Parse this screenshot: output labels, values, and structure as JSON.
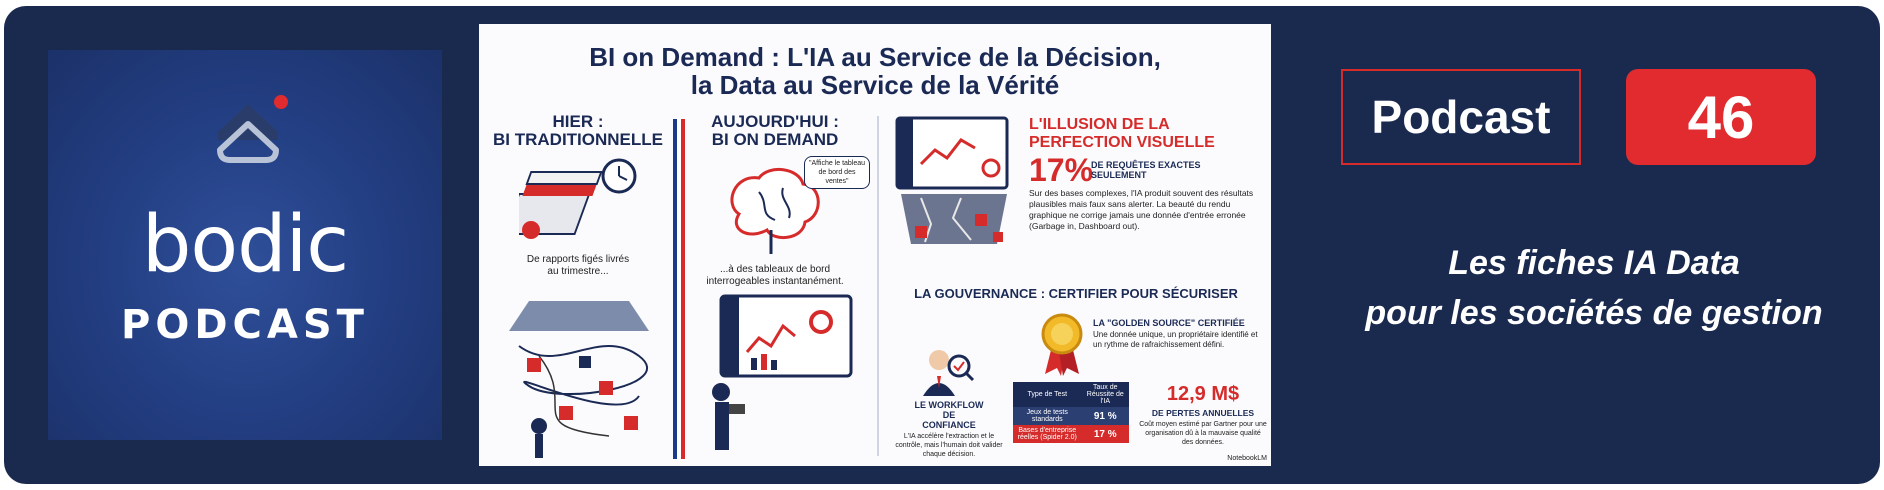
{
  "logo": {
    "word": "bodic",
    "sub": "PODCAST"
  },
  "infographic": {
    "title_line1": "BI on Demand : L'IA au Service de la Décision,",
    "title_line2": "la Data au Service de la Vérité",
    "left_head_1": "HIER :",
    "left_head_2": "BI TRADITIONNELLE",
    "left_caption_1": "De rapports figés livrés",
    "left_caption_2": "au trimestre...",
    "mid_head_1": "AUJOURD'HUI :",
    "mid_head_2": "BI ON DEMAND",
    "mid_bubble": "\"Affiche le tableau de bord des ventes\"",
    "mid_caption_1": "...à des tableaux de bord",
    "mid_caption_2": "interrogeables instantanément.",
    "illusion_1": "L'ILLUSION DE LA",
    "illusion_2": "PERFECTION VISUELLE",
    "stat_pct": "17%",
    "stat_label_1": "DE REQUÊTES EXACTES",
    "stat_label_2": "SEULEMENT",
    "stat_desc": "Sur des bases complexes, l'IA produit souvent des résultats plausibles mais faux sans alerter. La beauté du rendu graphique ne corrige jamais une donnée d'entrée erronée (Garbage in, Dashboard out).",
    "gov_head": "LA GOUVERNANCE : CERTIFIER POUR SÉCURISER",
    "golden_head": "LA \"GOLDEN SOURCE\" CERTIFIÉE",
    "golden_desc": "Une donnée unique, un propriétaire identifié et un rythme de rafraichissement défini.",
    "workflow_head_1": "LE WORKFLOW",
    "workflow_head_2": "DE",
    "workflow_head_3": "CONFIANCE",
    "workflow_desc": "L'IA accélère l'extraction et le contrôle, mais l'humain doit valider chaque décision.",
    "table": {
      "h1": "Type de Test",
      "h2": "Taux de Réussite de l'IA",
      "r1c1": "Jeux de tests standards",
      "r1c2": "91 %",
      "r2c1": "Bases d'entreprise réelles (Spider 2.0)",
      "r2c2": "17 %"
    },
    "loss_value": "12,9 M$",
    "loss_label": "DE PERTES ANNUELLES",
    "loss_desc": "Coût moyen estimé par Gartner pour une organisation dû à la mauvaise qualité des données.",
    "credit": "NotebookLM"
  },
  "right": {
    "podcast_label": "Podcast",
    "episode_number": "46",
    "tagline_1": "Les fiches IA Data",
    "tagline_2": "pour les sociétés de gestion"
  },
  "colors": {
    "background": "#1a2a4f",
    "accent_red": "#e12b2f",
    "logo_blue": "#223d80"
  }
}
